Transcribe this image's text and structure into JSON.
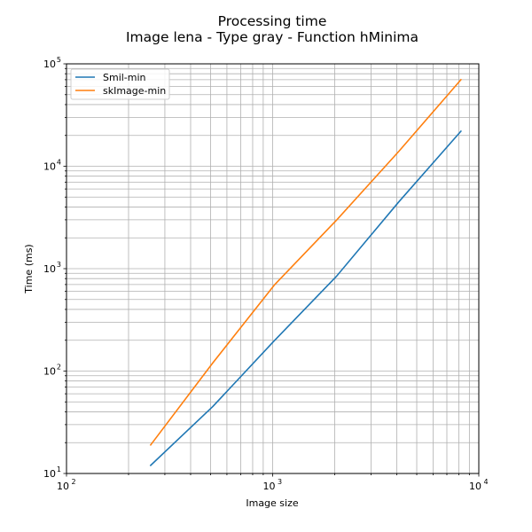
{
  "chart_data": {
    "type": "line",
    "title": "Processing time",
    "subtitle": "Image lena - Type gray - Function hMinima",
    "xlabel": "Image size",
    "ylabel": "Time (ms)",
    "xscale": "log",
    "yscale": "log",
    "xlim": [
      100,
      10000
    ],
    "ylim": [
      10,
      100000
    ],
    "grid": "on (major and minor)",
    "legend_placement": "top-left",
    "x_ticks": [
      {
        "base": "10",
        "exp": "2",
        "value": 100
      },
      {
        "base": "10",
        "exp": "3",
        "value": 1000
      },
      {
        "base": "10",
        "exp": "4",
        "value": 10000
      }
    ],
    "y_ticks": [
      {
        "base": "10",
        "exp": "1",
        "value": 10
      },
      {
        "base": "10",
        "exp": "2",
        "value": 100
      },
      {
        "base": "10",
        "exp": "3",
        "value": 1000
      },
      {
        "base": "10",
        "exp": "4",
        "value": 10000
      },
      {
        "base": "10",
        "exp": "5",
        "value": 100000
      }
    ],
    "series": [
      {
        "name": "Smil-min",
        "color": "#1f77b4",
        "x": [
          256,
          512,
          1024,
          2048,
          4096,
          8192
        ],
        "y": [
          12,
          45,
          200,
          850,
          4500,
          22000
        ]
      },
      {
        "name": "skImage-min",
        "color": "#ff7f0e",
        "x": [
          256,
          512,
          1024,
          2048,
          4096,
          8192
        ],
        "y": [
          19,
          120,
          700,
          3000,
          14000,
          70000
        ]
      }
    ]
  }
}
